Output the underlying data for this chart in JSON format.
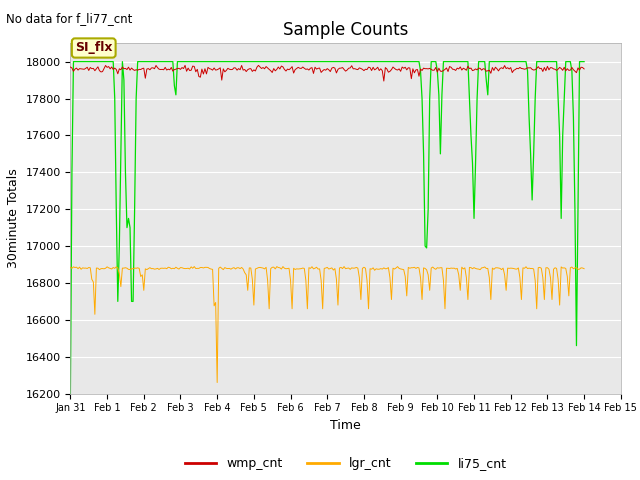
{
  "title": "Sample Counts",
  "top_left_text": "No data for f_li77_cnt",
  "annotation_text": "SI_flx",
  "xlabel": "Time",
  "ylabel": "30minute Totals",
  "ylim": [
    16200,
    18100
  ],
  "background_color": "#ffffff",
  "plot_bg_color": "#e8e8e8",
  "wmp_cnt_color": "#cc0000",
  "lgr_cnt_color": "#ffaa00",
  "li75_cnt_color": "#00dd00",
  "tick_labels": [
    "Jan 31",
    "Feb 1",
    "Feb 2",
    "Feb 3",
    "Feb 4",
    "Feb 5",
    "Feb 6",
    "Feb 7",
    "Feb 8",
    "Feb 9",
    "Feb 10",
    "Feb 11",
    "Feb 12",
    "Feb 13",
    "Feb 14",
    "Feb 15"
  ],
  "tick_positions": [
    0,
    24,
    48,
    72,
    96,
    120,
    144,
    168,
    192,
    216,
    240,
    264,
    288,
    312,
    336,
    360
  ],
  "legend_labels": [
    "wmp_cnt",
    "lgr_cnt",
    "li75_cnt"
  ],
  "legend_colors": [
    "#cc0000",
    "#ffaa00",
    "#00dd00"
  ],
  "wmp_base": 17960,
  "lgr_base": 16880,
  "n_points": 337
}
